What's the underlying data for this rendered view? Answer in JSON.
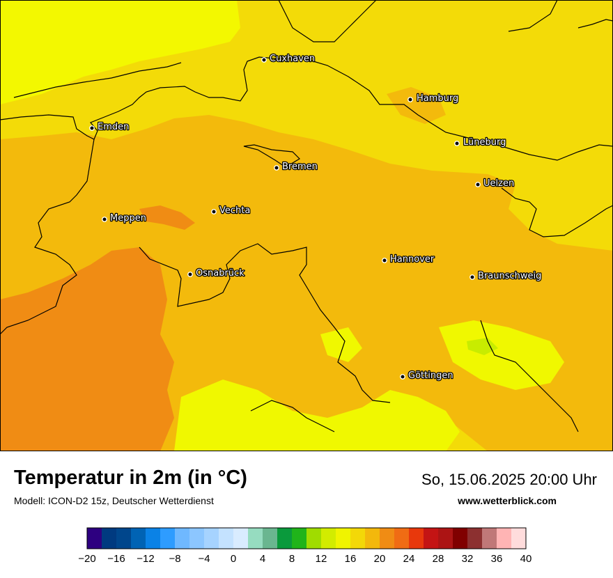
{
  "title": "Temperatur in 2m (in °C)",
  "model": "Modell: ICON-D2 15z, Deutscher Wetterdienst",
  "datetime": "So, 15.06.2025 20:00 Uhr",
  "website": "www.wetterblick.com",
  "cities": [
    {
      "name": "Cuxhaven"
    },
    {
      "name": "Hamburg"
    },
    {
      "name": "Emden"
    },
    {
      "name": "Lüneburg"
    },
    {
      "name": "Bremen"
    },
    {
      "name": "Uelzen"
    },
    {
      "name": "Vechta"
    },
    {
      "name": "Meppen"
    },
    {
      "name": "Hannover"
    },
    {
      "name": "Osnabrück"
    },
    {
      "name": "Braunschweig"
    },
    {
      "name": "Göttingen"
    }
  ],
  "legend": {
    "tick_labels": [
      "−20",
      "−16",
      "−12",
      "−8",
      "−4",
      "0",
      "4",
      "8",
      "12",
      "16",
      "20",
      "24",
      "28",
      "32",
      "36",
      "40"
    ],
    "colors": [
      "#2d0080",
      "#003a80",
      "#00468c",
      "#0063b4",
      "#0a82e6",
      "#2e9cff",
      "#6fb8ff",
      "#8cc6ff",
      "#a6d3ff",
      "#c4e2ff",
      "#d9ecff",
      "#96dcc0",
      "#6ab690",
      "#0a9a3c",
      "#20b41a",
      "#a0dc00",
      "#d2ec00",
      "#f0f400",
      "#f3d808",
      "#f3b80c",
      "#f08c14",
      "#f06c14",
      "#e8380c",
      "#c41414",
      "#ac1414",
      "#800000",
      "#8c3030",
      "#c07878",
      "#ffb4b4",
      "#ffdcdc"
    ]
  },
  "map_colors": {
    "sea": "#f3f800",
    "land_base": "#f3db08",
    "warm": "#f3ba0c",
    "hot": "#f08c14",
    "cool": "#f0f800",
    "cooler": "#c8ec00"
  }
}
